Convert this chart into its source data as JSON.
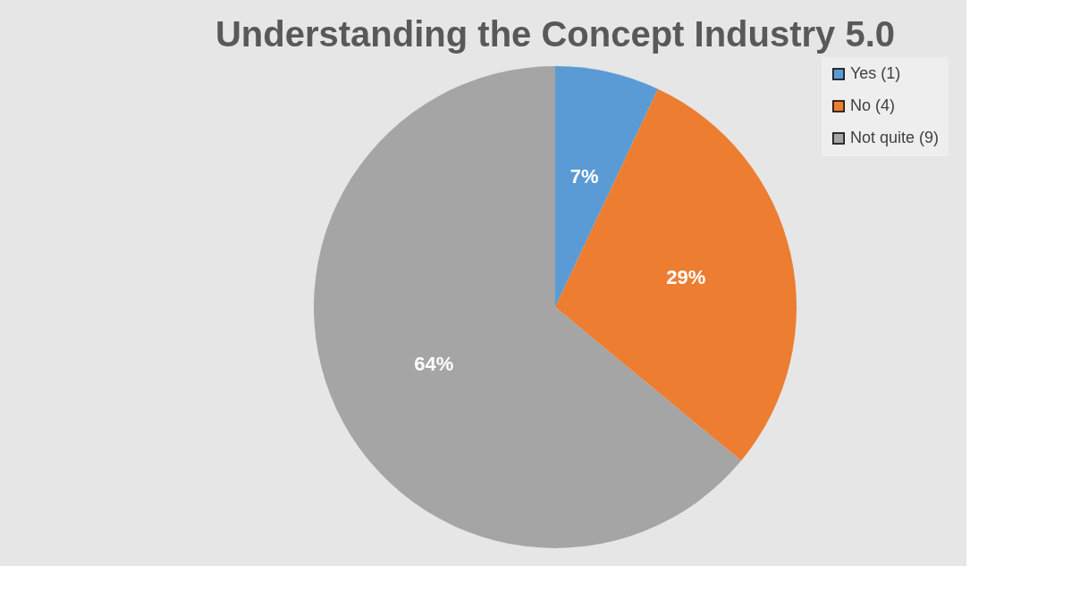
{
  "chart_data": {
    "type": "pie",
    "title": "Understanding the Concept Industry 5.0",
    "categories": [
      "Yes (1)",
      "No (4)",
      "Not quite (9)"
    ],
    "values": [
      7,
      29,
      64
    ],
    "colors": [
      "#5b9bd5",
      "#ed7d31",
      "#a5a5a5"
    ],
    "value_labels": [
      "7%",
      "29%",
      "64%"
    ],
    "legend": "right"
  }
}
